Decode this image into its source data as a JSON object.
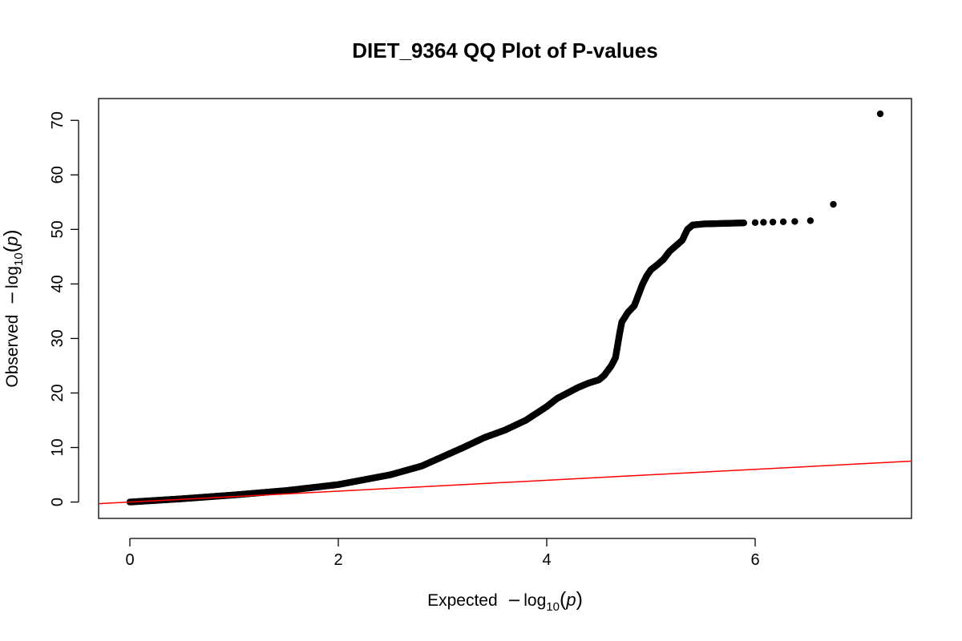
{
  "chart_data": {
    "type": "scatter",
    "title": "DIET_9364 QQ Plot of P-values",
    "xlabel": {
      "prefix": "Expected",
      "minus": "−",
      "log": "log",
      "sub": "10",
      "open": "(",
      "var": "p",
      "close": ")"
    },
    "ylabel": {
      "prefix": "Observed",
      "minus": "−",
      "log": "log",
      "sub": "10",
      "open": "(",
      "var": "p",
      "close": ")"
    },
    "xlim": [
      -0.3,
      7.5
    ],
    "ylim": [
      -3.0,
      74.0
    ],
    "xticks": [
      0,
      2,
      4,
      6
    ],
    "yticks": [
      0,
      10,
      20,
      30,
      40,
      50,
      60,
      70
    ],
    "grid": false,
    "legend": "none",
    "reference_line": {
      "slope": 1,
      "intercept": 0,
      "color": "#ff0000"
    },
    "point_color": "#000000",
    "curve": [
      [
        0.0,
        0.0
      ],
      [
        0.5,
        0.6
      ],
      [
        1.0,
        1.3
      ],
      [
        1.5,
        2.1
      ],
      [
        2.0,
        3.2
      ],
      [
        2.5,
        5.0
      ],
      [
        2.8,
        6.6
      ],
      [
        3.0,
        8.3
      ],
      [
        3.2,
        10.0
      ],
      [
        3.4,
        11.8
      ],
      [
        3.6,
        13.2
      ],
      [
        3.8,
        15.0
      ],
      [
        4.0,
        17.5
      ],
      [
        4.1,
        19.0
      ],
      [
        4.2,
        20.0
      ],
      [
        4.3,
        21.0
      ],
      [
        4.4,
        21.8
      ],
      [
        4.5,
        22.4
      ],
      [
        4.55,
        23.2
      ],
      [
        4.62,
        25.0
      ],
      [
        4.66,
        26.5
      ],
      [
        4.7,
        31.0
      ],
      [
        4.72,
        33.0
      ],
      [
        4.78,
        34.8
      ],
      [
        4.84,
        36.0
      ],
      [
        4.88,
        38.0
      ],
      [
        4.92,
        40.0
      ],
      [
        4.96,
        41.5
      ],
      [
        5.0,
        42.6
      ],
      [
        5.06,
        43.5
      ],
      [
        5.12,
        44.5
      ],
      [
        5.18,
        46.0
      ],
      [
        5.24,
        47.0
      ],
      [
        5.3,
        48.0
      ],
      [
        5.35,
        50.0
      ],
      [
        5.4,
        50.8
      ],
      [
        5.5,
        51.0
      ],
      [
        5.7,
        51.1
      ],
      [
        5.9,
        51.2
      ]
    ],
    "tail_points": [
      [
        6.0,
        51.25
      ],
      [
        6.08,
        51.3
      ],
      [
        6.17,
        51.35
      ],
      [
        6.27,
        51.4
      ],
      [
        6.38,
        51.45
      ],
      [
        6.53,
        51.6
      ],
      [
        6.75,
        54.6
      ],
      [
        7.2,
        71.2
      ]
    ]
  }
}
